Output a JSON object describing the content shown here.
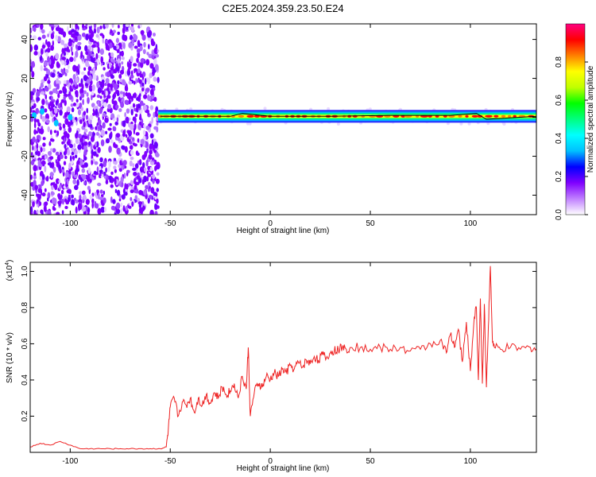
{
  "title": "C2E5.2024.359.23.50.E24",
  "chart_data": [
    {
      "type": "heatmap",
      "xlabel": "Height of straight line (km)",
      "ylabel": "Frequency (Hz)",
      "xlim": [
        -120,
        133
      ],
      "ylim": [
        -50,
        48
      ],
      "xticks": [
        -100,
        -50,
        0,
        50,
        100
      ],
      "yticks": [
        -40,
        -20,
        0,
        20,
        40
      ],
      "grid": false,
      "noise_region_x": [
        -120,
        -56
      ],
      "signal_region_x": [
        -56,
        133
      ],
      "signal_line": [
        {
          "x": -55,
          "y": 0.5
        },
        {
          "x": -40,
          "y": 0.5
        },
        {
          "x": -20,
          "y": 0.5
        },
        {
          "x": -14,
          "y": 2
        },
        {
          "x": 0,
          "y": 0.5
        },
        {
          "x": 30,
          "y": 0.5
        },
        {
          "x": 60,
          "y": 1
        },
        {
          "x": 90,
          "y": 1
        },
        {
          "x": 103,
          "y": 2
        },
        {
          "x": 108,
          "y": -1
        },
        {
          "x": 133,
          "y": 0.5
        }
      ],
      "colorbar": {
        "label": "Normalized spectral amplitude",
        "range": [
          0.0,
          1.0
        ],
        "ticks": [
          "0.0",
          "0.2",
          "0.4",
          "0.6",
          "0.8"
        ],
        "colors": [
          "#ffffff",
          "#c080ff",
          "#8000ff",
          "#0000ff",
          "#00c0ff",
          "#00ffff",
          "#00ff80",
          "#00ff00",
          "#c0ff00",
          "#ffff00",
          "#ff8000",
          "#ff0000",
          "#ff0080"
        ]
      }
    },
    {
      "type": "line",
      "xlabel": "Height of straight line (km)",
      "ylabel": "SNR (10 * v/v)",
      "yscale_label": "(x10",
      "yscale_exponent": "4",
      "xlim": [
        -120,
        133
      ],
      "ylim": [
        0,
        1.05
      ],
      "xticks": [
        -100,
        -50,
        0,
        50,
        100
      ],
      "yticks": [
        0.2,
        0.4,
        0.6,
        0.8,
        1.0
      ],
      "ytick_labels": [
        "0.2",
        "0.4",
        "0.6",
        "0.8",
        "1.0"
      ],
      "line_color": "#ee2222",
      "series": [
        {
          "x": [
            -120,
            -115,
            -110,
            -105,
            -100,
            -95,
            -90,
            -85,
            -80,
            -75,
            -70,
            -65,
            -60,
            -55,
            -52,
            -51,
            -50,
            -48,
            -46,
            -44,
            -42,
            -40,
            -38,
            -36,
            -34,
            -32,
            -30,
            -28,
            -26,
            -24,
            -22,
            -20,
            -18,
            -16,
            -14,
            -12,
            -11,
            -10,
            -8,
            -6,
            -4,
            -2,
            0,
            2,
            4,
            6,
            8,
            10,
            12,
            14,
            16,
            18,
            20,
            22,
            24,
            26,
            28,
            30,
            32,
            34,
            36,
            38,
            40,
            45,
            50,
            55,
            60,
            65,
            70,
            75,
            80,
            85,
            88,
            90,
            92,
            94,
            96,
            98,
            100,
            102,
            103,
            104,
            105,
            106,
            107,
            108,
            109,
            110,
            111,
            112,
            115,
            120,
            125,
            130,
            133
          ],
          "y": [
            0.03,
            0.05,
            0.04,
            0.06,
            0.04,
            0.02,
            0.02,
            0.02,
            0.02,
            0.02,
            0.02,
            0.02,
            0.02,
            0.02,
            0.03,
            0.12,
            0.25,
            0.3,
            0.2,
            0.28,
            0.26,
            0.3,
            0.22,
            0.3,
            0.26,
            0.32,
            0.27,
            0.33,
            0.3,
            0.36,
            0.32,
            0.34,
            0.38,
            0.3,
            0.42,
            0.35,
            0.58,
            0.2,
            0.33,
            0.38,
            0.36,
            0.42,
            0.4,
            0.44,
            0.42,
            0.46,
            0.44,
            0.48,
            0.46,
            0.5,
            0.47,
            0.51,
            0.49,
            0.53,
            0.51,
            0.54,
            0.52,
            0.55,
            0.56,
            0.57,
            0.58,
            0.57,
            0.58,
            0.58,
            0.57,
            0.58,
            0.57,
            0.58,
            0.56,
            0.57,
            0.6,
            0.62,
            0.55,
            0.65,
            0.58,
            0.68,
            0.5,
            0.72,
            0.45,
            0.75,
            0.8,
            0.4,
            0.85,
            0.38,
            0.82,
            0.36,
            0.7,
            1.03,
            0.62,
            0.58,
            0.57,
            0.58,
            0.57,
            0.58,
            0.57
          ]
        }
      ]
    }
  ]
}
